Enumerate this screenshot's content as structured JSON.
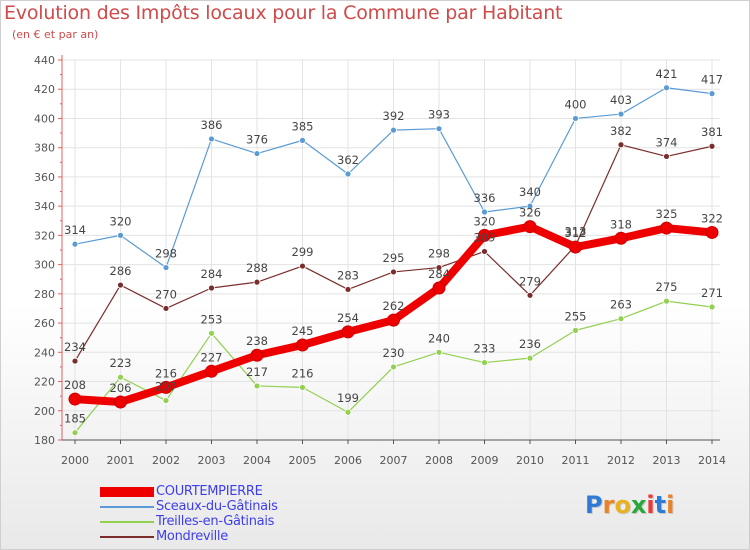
{
  "chart_data": {
    "type": "line",
    "title": "Evolution des Impôts locaux pour la Commune par Habitant",
    "subtitle": "(en € et par an)",
    "x": [
      "2000",
      "2001",
      "2002",
      "2003",
      "2004",
      "2005",
      "2006",
      "2007",
      "2008",
      "2009",
      "2010",
      "2011",
      "2012",
      "2013",
      "2014"
    ],
    "ylim": [
      180,
      440
    ],
    "yticks": [
      180,
      200,
      220,
      240,
      260,
      280,
      300,
      320,
      340,
      360,
      380,
      400,
      420,
      440
    ],
    "grid": true,
    "legend_position": "bottom-left",
    "series": [
      {
        "name": "COURTEMPIERRE",
        "color": "#ee0000",
        "values": [
          208,
          206,
          216,
          227,
          238,
          245,
          254,
          262,
          284,
          320,
          326,
          312,
          318,
          325,
          322
        ]
      },
      {
        "name": "Sceaux-du-Gâtinais",
        "color": "#5b9bd5",
        "values": [
          314,
          320,
          298,
          386,
          376,
          385,
          362,
          392,
          393,
          336,
          340,
          400,
          403,
          421,
          417
        ]
      },
      {
        "name": "Treilles-en-Gâtinais",
        "color": "#92d050",
        "values": [
          185,
          223,
          207,
          253,
          217,
          216,
          199,
          230,
          240,
          233,
          236,
          255,
          263,
          275,
          271
        ]
      },
      {
        "name": "Mondreville",
        "color": "#7b2d2d",
        "values": [
          234,
          286,
          270,
          284,
          288,
          299,
          283,
          295,
          298,
          309,
          279,
          313,
          382,
          374,
          381
        ]
      }
    ]
  },
  "logo": {
    "letters": [
      "P",
      "r",
      "o",
      "x",
      "i",
      "t",
      "i"
    ],
    "colors": [
      "#2e7ad6",
      "#e8832a",
      "#e8b21f",
      "#2aa83a",
      "#e83a3a",
      "#2e7ad6",
      "#e8832a"
    ]
  }
}
